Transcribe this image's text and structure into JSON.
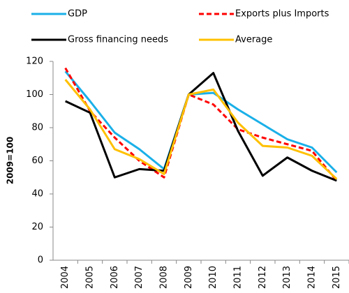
{
  "chart_data": {
    "type": "line",
    "y_label": "2009=100",
    "categories": [
      "2004",
      "2005",
      "2006",
      "2007",
      "2008",
      "2009",
      "2010",
      "2011",
      "2012",
      "2013",
      "2014",
      "2015"
    ],
    "series": [
      {
        "name": "GDP",
        "color": "#1ab0e8",
        "dashed": false,
        "values": [
          114,
          96,
          77,
          67,
          55,
          100,
          101,
          91,
          82,
          73,
          68,
          53
        ]
      },
      {
        "name": "Exports plus Imports",
        "color": "#ff0000",
        "dashed": true,
        "values": [
          116,
          90,
          74,
          60,
          50,
          100,
          94,
          79,
          74,
          70,
          66,
          48
        ]
      },
      {
        "name": "Gross financing needs",
        "color": "#000000",
        "dashed": false,
        "values": [
          96,
          89,
          50,
          55,
          54,
          100,
          113,
          78,
          51,
          62,
          54,
          48
        ]
      },
      {
        "name": "Average",
        "color": "#ffc000",
        "dashed": false,
        "values": [
          109,
          91,
          67,
          61,
          52,
          100,
          103,
          83,
          69,
          68,
          63,
          49
        ]
      }
    ],
    "ylim": [
      0,
      120
    ],
    "yticks": [
      0,
      20,
      40,
      60,
      80,
      100,
      120
    ],
    "grid": false
  }
}
